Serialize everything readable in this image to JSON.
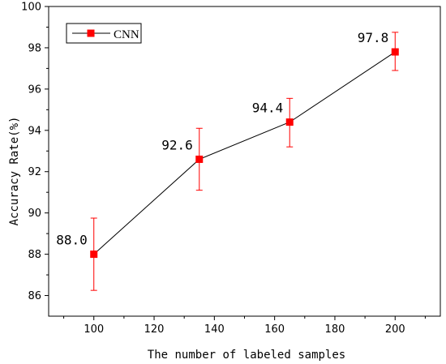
{
  "chart_data": {
    "type": "line",
    "x": [
      100,
      135,
      165,
      200
    ],
    "series": [
      {
        "name": "CNN",
        "values": [
          88.0,
          92.6,
          94.4,
          97.8
        ],
        "error_low": [
          86.25,
          91.1,
          93.2,
          96.9
        ],
        "error_high": [
          89.75,
          94.1,
          95.55,
          98.75
        ],
        "data_labels": [
          "88.0",
          "92.6",
          "94.4",
          "97.8"
        ],
        "line_color": "#000000",
        "marker_color": "#ff0000",
        "errorbar_color": "#ff0000",
        "marker": "square"
      }
    ],
    "xlabel": "The number of labeled samples",
    "ylabel": "Accuracy Rate(%)",
    "xlim": [
      85,
      215
    ],
    "ylim": [
      85,
      100
    ],
    "xticks": [
      100,
      120,
      140,
      160,
      180,
      200
    ],
    "yticks": [
      86,
      88,
      90,
      92,
      94,
      96,
      98,
      100
    ],
    "grid": false,
    "legend_position": "top-left"
  }
}
